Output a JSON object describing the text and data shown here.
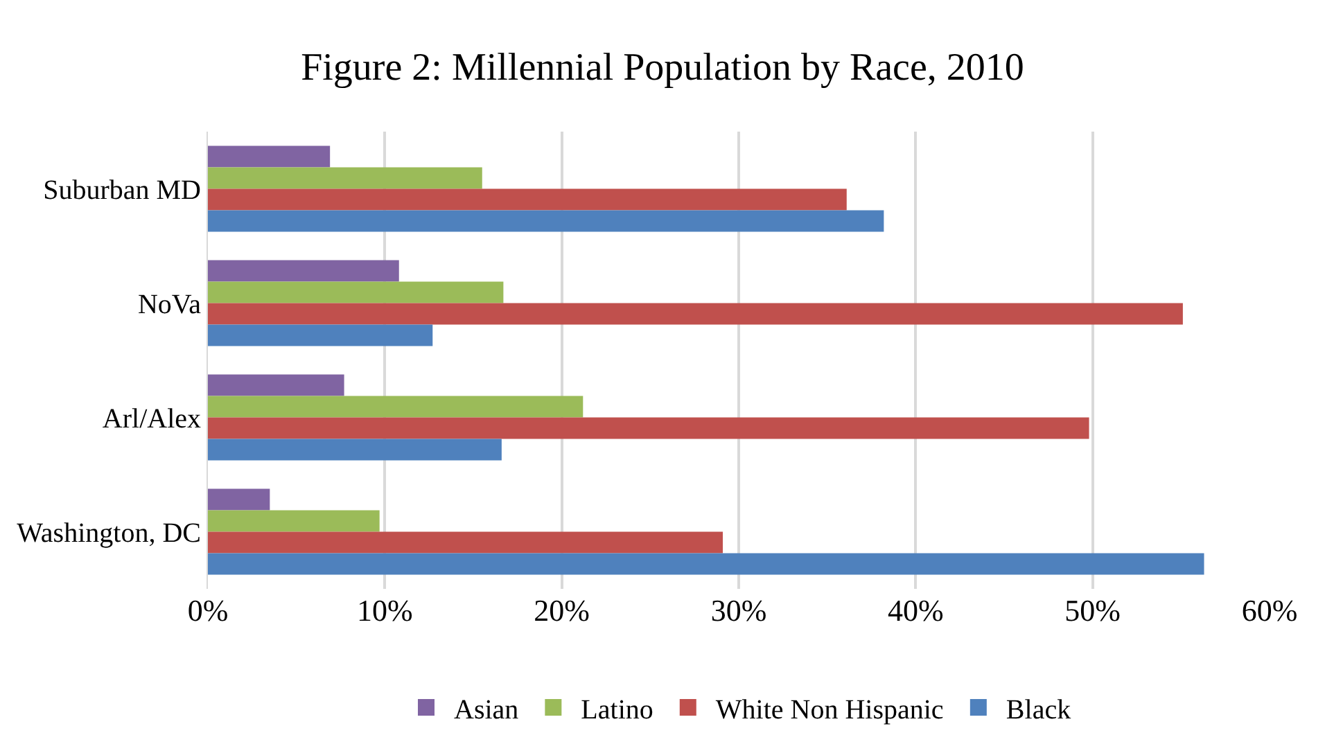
{
  "chart_data": {
    "type": "bar",
    "orientation": "horizontal",
    "title": "Figure 2: Millennial Population by Race, 2010",
    "categories": [
      "Suburban MD",
      "NoVa",
      "Arl/Alex",
      "Washington, DC"
    ],
    "series": [
      {
        "name": "Asian",
        "color": "#8064a2",
        "values": [
          6.9,
          10.8,
          7.7,
          3.5
        ]
      },
      {
        "name": "Latino",
        "color": "#9bbb59",
        "values": [
          15.5,
          16.7,
          21.2,
          9.7
        ]
      },
      {
        "name": "White Non Hispanic",
        "color": "#c0504d",
        "values": [
          36.1,
          55.1,
          49.8,
          29.1
        ]
      },
      {
        "name": "Black",
        "color": "#4f81bd",
        "values": [
          38.2,
          12.7,
          16.6,
          56.3
        ]
      }
    ],
    "xlim": [
      0,
      60
    ],
    "xticks": [
      {
        "value": 0,
        "label": "0%"
      },
      {
        "value": 10,
        "label": "10%"
      },
      {
        "value": 20,
        "label": "20%"
      },
      {
        "value": 30,
        "label": "30%"
      },
      {
        "value": 40,
        "label": "40%"
      },
      {
        "value": 50,
        "label": "50%"
      },
      {
        "value": 60,
        "label": "60%"
      }
    ],
    "grid": "x",
    "legend": "bottom"
  }
}
